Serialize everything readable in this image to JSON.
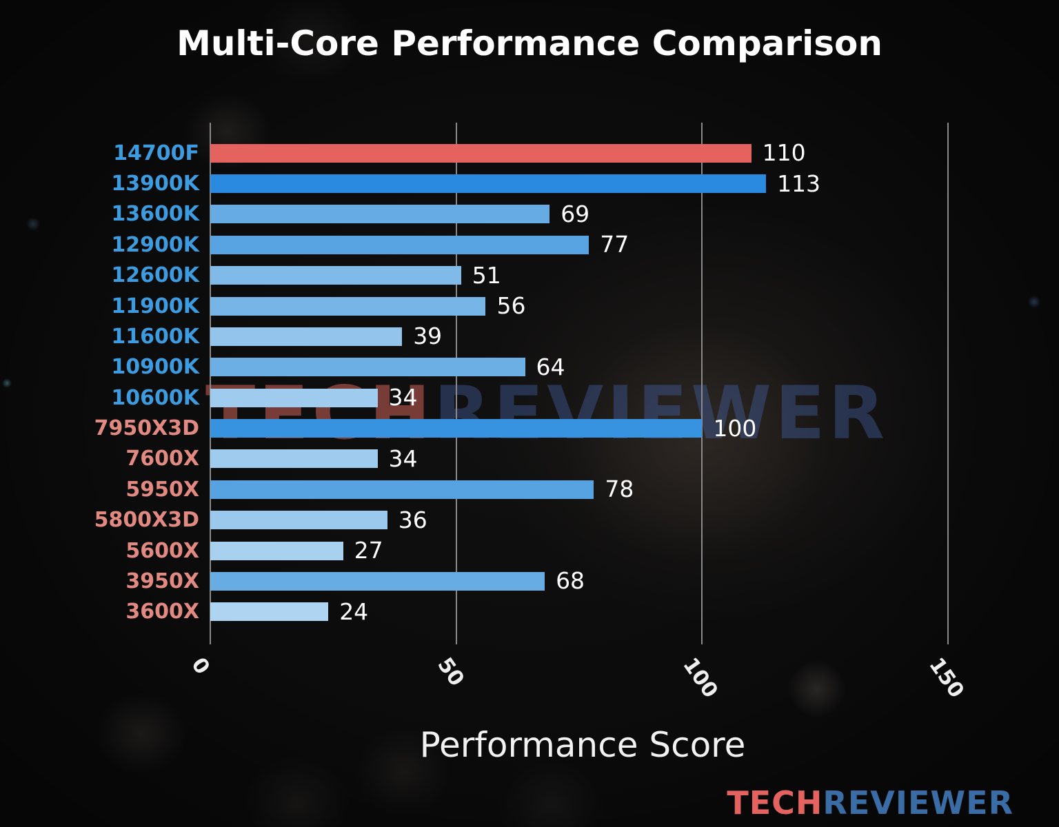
{
  "chart_data": {
    "type": "bar",
    "orientation": "horizontal",
    "title": "Multi-Core Performance Comparison",
    "xlabel": "Performance Score",
    "xlim": [
      0,
      150
    ],
    "xticks": [
      0,
      50,
      100,
      150
    ],
    "grid": true,
    "legend": false,
    "categories": [
      "14700F",
      "13900K",
      "13600K",
      "12900K",
      "12600K",
      "11900K",
      "11600K",
      "10900K",
      "10600K",
      "7950X3D",
      "7600X",
      "5950X",
      "5800X3D",
      "5600X",
      "3950X",
      "3600X"
    ],
    "values": [
      110,
      113,
      69,
      77,
      51,
      56,
      39,
      64,
      34,
      100,
      34,
      78,
      36,
      27,
      68,
      24
    ],
    "bar_colors": [
      "#e4635f",
      "#2a8ae0",
      "#66abe3",
      "#58a3e1",
      "#7fbae8",
      "#77b5e6",
      "#93c5ec",
      "#6cafe4",
      "#9ecbee",
      "#3792df",
      "#9ecbee",
      "#57a2e1",
      "#9ac9ed",
      "#a8d1f0",
      "#67ace3",
      "#aed4f1"
    ],
    "label_colors": [
      "#3d9be0",
      "#3d9be0",
      "#3d9be0",
      "#3d9be0",
      "#3d9be0",
      "#3d9be0",
      "#3d9be0",
      "#3d9be0",
      "#3d9be0",
      "#e28a82",
      "#e28a82",
      "#e28a82",
      "#e28a82",
      "#e28a82",
      "#e28a82",
      "#e28a82"
    ]
  },
  "watermark": {
    "tech": "TECH",
    "reviewer": "REVIEWER"
  },
  "logo": {
    "tech": "TECH",
    "reviewer": "REVIEWER"
  },
  "colors": {
    "background": "#0a0a0b",
    "title": "#ffffff",
    "value_label": "#ffffff",
    "gridline": "#8a8a8a",
    "tick_label": "#efefef",
    "xlabel": "#f2f2f2",
    "intel_label": "#3d9be0",
    "amd_label": "#e28a82",
    "highlight_bar": "#e4635f",
    "logo_tech": "#e4635f",
    "logo_reviewer": "#3a6da6",
    "watermark_tech": "rgba(225,105,95,0.50)",
    "watermark_reviewer": "rgba(70,100,170,0.40)"
  }
}
